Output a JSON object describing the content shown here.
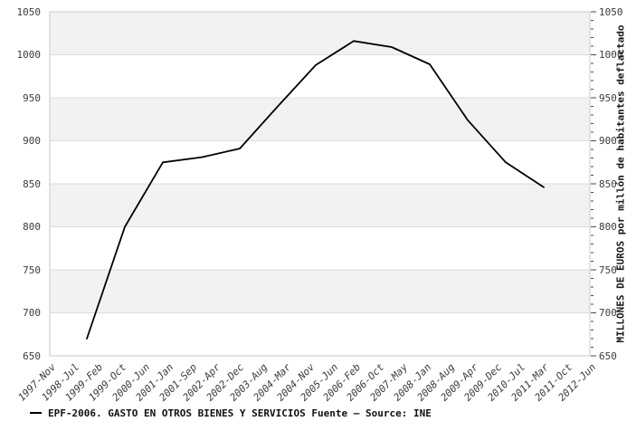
{
  "chart_data": {
    "type": "line",
    "title": "",
    "x_axis": {
      "range_labels": [
        "1997-Nov",
        "2012-Jun"
      ],
      "tick_labels": [
        "1997-Nov",
        "1998-Jul",
        "1999-Feb",
        "1999-Oct",
        "2000-Jun",
        "2001-Jan",
        "2001-Sep",
        "2002-Apr",
        "2002-Dec",
        "2003-Aug",
        "2004-Mar",
        "2004-Nov",
        "2005-Jun",
        "2006-Feb",
        "2006-Oct",
        "2007-May",
        "2008-Jan",
        "2008-Aug",
        "2009-Apr",
        "2009-Dec",
        "2010-Jul",
        "2011-Mar",
        "2011-Oct",
        "2012-Jun"
      ]
    },
    "y_axis": {
      "min": 650,
      "max": 1050,
      "major_step": 50,
      "minor_step": 10,
      "tick_labels": [
        "1050",
        "1000",
        "950",
        "900",
        "850",
        "800",
        "750",
        "700",
        "650"
      ],
      "right_title": "MILLONES DE EUROS por millón de habitantes deflactado"
    },
    "series": [
      {
        "name": "EPF-2006. GASTO EN OTROS BIENES Y SERVICIOS",
        "color": "#000000",
        "points": [
          {
            "x_frac": 0.0687,
            "value": 670
          },
          {
            "x_frac": 0.139,
            "value": 800
          },
          {
            "x_frac": 0.2094,
            "value": 875
          },
          {
            "x_frac": 0.2814,
            "value": 881
          },
          {
            "x_frac": 0.3518,
            "value": 891
          },
          {
            "x_frac": 0.4221,
            "value": 940
          },
          {
            "x_frac": 0.4925,
            "value": 988
          },
          {
            "x_frac": 0.5628,
            "value": 1016
          },
          {
            "x_frac": 0.6332,
            "value": 1009
          },
          {
            "x_frac": 0.7035,
            "value": 989
          },
          {
            "x_frac": 0.7739,
            "value": 924
          },
          {
            "x_frac": 0.8442,
            "value": 875
          },
          {
            "x_frac": 0.9146,
            "value": 846
          }
        ]
      }
    ],
    "style": {
      "band_fill": "#f2f2f2",
      "band_alt_fill": "#ffffff",
      "grid_color": "#dcdcdc",
      "border_color": "#c9c9c9",
      "tick_color": "#4a4a4a",
      "line_color": "#000000"
    },
    "legend_position": "bottom-left",
    "grid": "horizontal-bands"
  },
  "legend": {
    "text": "EPF-2006. GASTO EN OTROS BIENES Y SERVICIOS  Fuente — Source: INE"
  }
}
